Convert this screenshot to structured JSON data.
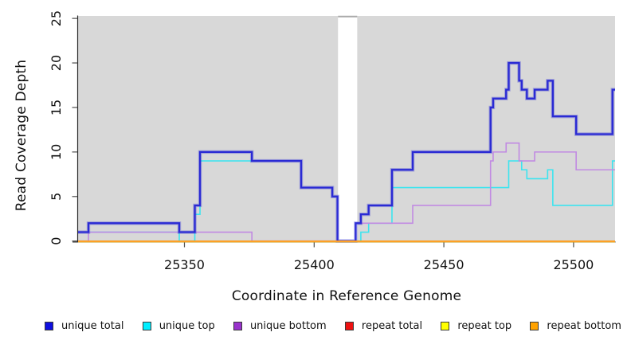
{
  "chart_data": {
    "type": "line",
    "subtype": "step",
    "title": "",
    "xlabel": "Coordinate in Reference Genome",
    "ylabel": "Read Coverage Depth",
    "xlim": [
      25309,
      25516
    ],
    "ylim": [
      0,
      25.3
    ],
    "x_ticks": [
      25350,
      25400,
      25450,
      25500
    ],
    "y_ticks": [
      0,
      5,
      10,
      15,
      20,
      25
    ],
    "grid": false,
    "legend_position": "bottom",
    "panel_bg": "#d8d8d8",
    "gap_band": {
      "x0": 25409.2,
      "x1": 25416.6,
      "color": "#ffffff",
      "top_edge_color": "#a9a9a9"
    },
    "axis_color": "#2b2b2b",
    "tick_color": "#4d4d4d",
    "label_color": "#111111",
    "series": [
      {
        "name": "unique total",
        "color": "#0f0fe0",
        "line_color": "#2a2ad4",
        "width": 2.3,
        "halo": true,
        "z": 3,
        "points": [
          [
            25309,
            1
          ],
          [
            25313,
            2
          ],
          [
            25348,
            1
          ],
          [
            25354,
            4
          ],
          [
            25356,
            10
          ],
          [
            25376,
            9
          ],
          [
            25395,
            6
          ],
          [
            25407,
            5
          ],
          [
            25409,
            0
          ],
          [
            25416,
            2
          ],
          [
            25418,
            3
          ],
          [
            25421,
            4
          ],
          [
            25430,
            8
          ],
          [
            25438,
            10
          ],
          [
            25468,
            15
          ],
          [
            25469,
            16
          ],
          [
            25474,
            17
          ],
          [
            25475,
            20
          ],
          [
            25479,
            18
          ],
          [
            25480,
            17
          ],
          [
            25482,
            16
          ],
          [
            25485,
            17
          ],
          [
            25490,
            18
          ],
          [
            25492,
            14
          ],
          [
            25501,
            12
          ],
          [
            25515,
            17
          ],
          [
            25516,
            17
          ]
        ]
      },
      {
        "name": "unique top",
        "color": "#00eeff",
        "line_color": "#3ce4ef",
        "width": 1.6,
        "halo": false,
        "z": 1,
        "points": [
          [
            25309,
            1
          ],
          [
            25348,
            0
          ],
          [
            25354,
            3
          ],
          [
            25356,
            9
          ],
          [
            25395,
            6
          ],
          [
            25407,
            5
          ],
          [
            25409,
            0
          ],
          [
            25418,
            1
          ],
          [
            25421,
            2
          ],
          [
            25430,
            6
          ],
          [
            25475,
            9
          ],
          [
            25480,
            8
          ],
          [
            25482,
            7
          ],
          [
            25490,
            8
          ],
          [
            25492,
            4
          ],
          [
            25515,
            9
          ],
          [
            25516,
            9
          ]
        ]
      },
      {
        "name": "unique bottom",
        "color": "#9933cc",
        "line_color": "#c18ae2",
        "width": 1.6,
        "halo": false,
        "z": 2,
        "points": [
          [
            25309,
            0
          ],
          [
            25313,
            1
          ],
          [
            25376,
            0
          ],
          [
            25416,
            2
          ],
          [
            25438,
            4
          ],
          [
            25468,
            9
          ],
          [
            25469,
            10
          ],
          [
            25474,
            11
          ],
          [
            25479,
            9
          ],
          [
            25485,
            10
          ],
          [
            25501,
            8
          ],
          [
            25516,
            8
          ]
        ]
      },
      {
        "name": "repeat total",
        "color": "#ee1111",
        "line_color": "#d42a2a",
        "width": 2.0,
        "halo": false,
        "z": 4,
        "points": [
          [
            25309,
            0
          ],
          [
            25516,
            0
          ]
        ]
      },
      {
        "name": "repeat top",
        "color": "#ffff00",
        "line_color": "#ffff00",
        "width": 2.0,
        "halo": false,
        "z": 5,
        "points": [
          [
            25309,
            0
          ],
          [
            25516,
            0
          ]
        ]
      },
      {
        "name": "repeat bottom",
        "color": "#ffa200",
        "line_color": "#ffa126",
        "width": 2.0,
        "halo": false,
        "z": 6,
        "points": [
          [
            25309,
            0
          ],
          [
            25516,
            0
          ]
        ]
      }
    ]
  }
}
